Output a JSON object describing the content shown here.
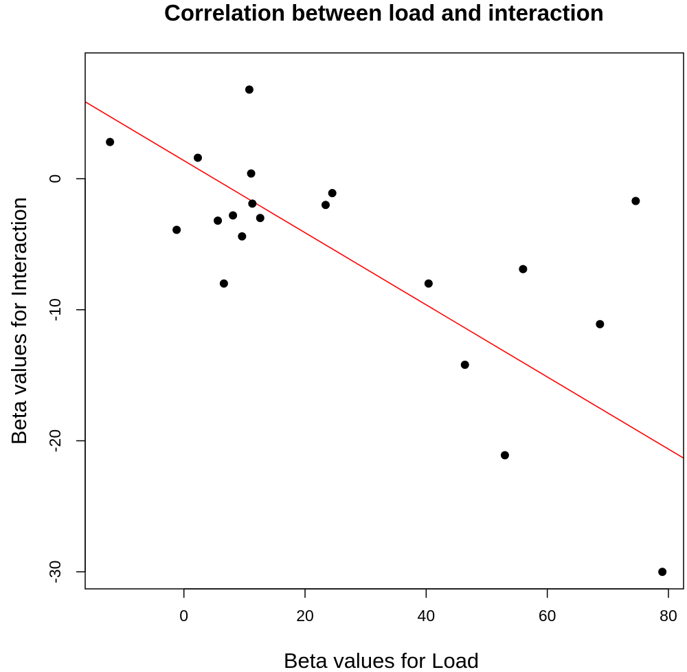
{
  "chart_data": {
    "type": "scatter",
    "title": "Correlation between load and interaction",
    "xlabel": "Beta values for Load",
    "ylabel": "Beta values for Interaction",
    "xlim": [
      -16.3,
      82.5
    ],
    "ylim": [
      -31.3,
      9.6
    ],
    "xticks": [
      0,
      20,
      40,
      60,
      80
    ],
    "yticks": [
      0,
      -10,
      -20,
      -30
    ],
    "grid": false,
    "point_color": "#000000",
    "line_color": "#ff0000",
    "points": [
      {
        "x": -12.2,
        "y": 2.8
      },
      {
        "x": -1.2,
        "y": -3.9
      },
      {
        "x": 2.3,
        "y": 1.6
      },
      {
        "x": 5.6,
        "y": -3.2
      },
      {
        "x": 6.6,
        "y": -8.0
      },
      {
        "x": 8.1,
        "y": -2.8
      },
      {
        "x": 9.6,
        "y": -4.4
      },
      {
        "x": 10.8,
        "y": 6.8
      },
      {
        "x": 11.1,
        "y": 0.4
      },
      {
        "x": 11.3,
        "y": -1.9
      },
      {
        "x": 12.6,
        "y": -3.0
      },
      {
        "x": 23.4,
        "y": -2.0
      },
      {
        "x": 24.5,
        "y": -1.1
      },
      {
        "x": 40.4,
        "y": -8.0
      },
      {
        "x": 46.4,
        "y": -14.2
      },
      {
        "x": 53.0,
        "y": -21.1
      },
      {
        "x": 56.0,
        "y": -6.9
      },
      {
        "x": 68.7,
        "y": -11.1
      },
      {
        "x": 74.6,
        "y": -1.7
      },
      {
        "x": 79.0,
        "y": -30.0
      }
    ],
    "fit_line": {
      "slope": -0.2752,
      "intercept": 1.383,
      "x_range": [
        -16.3,
        82.5
      ]
    }
  }
}
